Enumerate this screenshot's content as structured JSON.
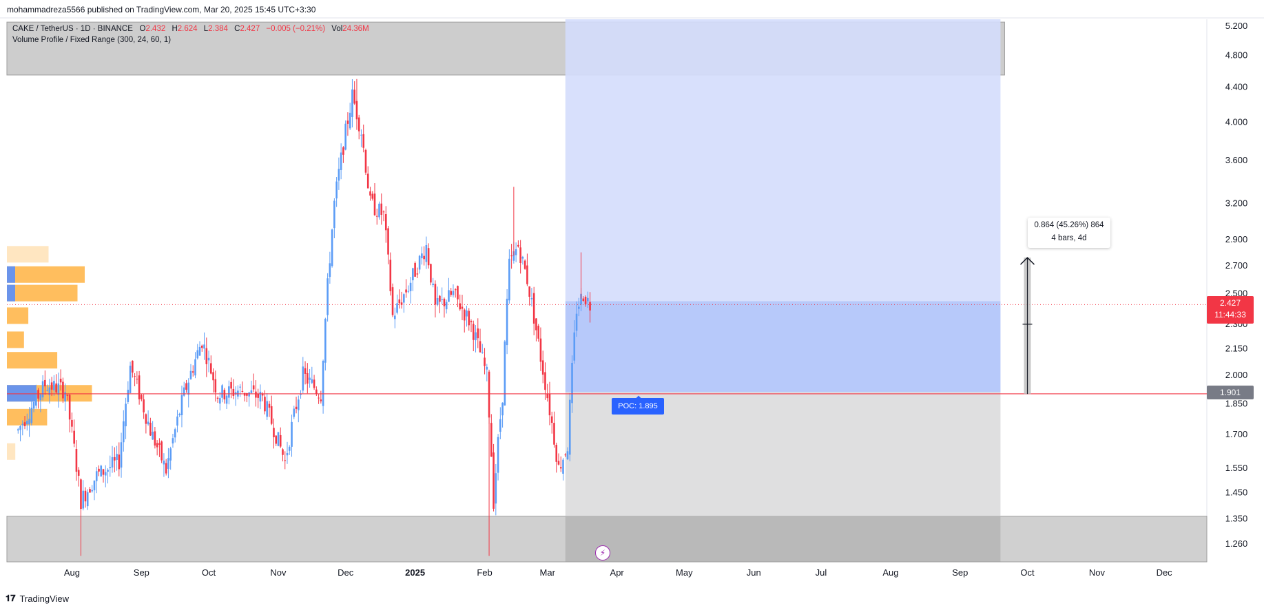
{
  "header": {
    "publisher": "mohammadreza5566 published on TradingView.com, Mar 20, 2025 15:45 UTC+3:30"
  },
  "legend": {
    "symbol": "CAKE / TetherUS · 1D · BINANCE",
    "open_label": "O",
    "open": "2.432",
    "high_label": "H",
    "high": "2.624",
    "low_label": "L",
    "low": "2.384",
    "close_label": "C",
    "close": "2.427",
    "change": "−0.005 (−0.21%)",
    "vol_label": "Vol",
    "vol": "24.36M",
    "indicator": "Volume Profile / Fixed Range (300, 24, 60, 1)"
  },
  "measure": {
    "line1": "0.864 (45.26%) 864",
    "line2": "4 bars, 4d"
  },
  "poc_label": "POC: 1.895",
  "price_tag": {
    "price": "2.427",
    "countdown": "11:44:33"
  },
  "hline_tag": "1.901",
  "footer": {
    "brand": "TradingView",
    "logo": "tradingview-logo-icon"
  },
  "colors": {
    "up": "#5b9cf6",
    "down": "#f23645",
    "zone_blue": "#d4ddfc",
    "zone_blue_dark": "#b3c6fa",
    "zone_gray": "#dcdcdd",
    "zone_gray_dark": "#c4c4c4",
    "vp_orange": "#ffb74d",
    "vp_blue": "#5b8ff9"
  },
  "chart_data": {
    "type": "candlestick",
    "y_scale": "log",
    "y_ticks": [
      "5.200",
      "4.800",
      "4.400",
      "4.000",
      "3.600",
      "3.200",
      "2.900",
      "2.700",
      "2.500",
      "2.300",
      "2.150",
      "2.000",
      "1.850",
      "1.700",
      "1.550",
      "1.450",
      "1.350",
      "1.260"
    ],
    "x_ticks": [
      "Aug",
      "Sep",
      "Oct",
      "Nov",
      "Dec",
      "2025",
      "Feb",
      "Mar",
      "Apr",
      "May",
      "Jun",
      "Jul",
      "Aug",
      "Sep",
      "Oct",
      "Nov",
      "Dec"
    ],
    "x_tick_dates": [
      "2024-08-01",
      "2024-09-01",
      "2024-10-01",
      "2024-11-01",
      "2024-12-01",
      "2025-01-01",
      "2025-02-01",
      "2025-03-01",
      "2025-04-01",
      "2025-05-01",
      "2025-06-01",
      "2025-07-01",
      "2025-08-01",
      "2025-09-01",
      "2025-10-01",
      "2025-11-01",
      "2025-12-01"
    ],
    "y_range": [
      1.2,
      5.3
    ],
    "last_price": 2.427,
    "horizontal_line": 1.901,
    "poc": 1.895,
    "price_path": [
      [
        "2024-07-08",
        1.72
      ],
      [
        "2024-07-20",
        1.95
      ],
      [
        "2024-07-29",
        1.92
      ],
      [
        "2024-08-05",
        1.42
      ],
      [
        "2024-08-12",
        1.52
      ],
      [
        "2024-08-22",
        1.58
      ],
      [
        "2024-08-27",
        2.05
      ],
      [
        "2024-09-05",
        1.72
      ],
      [
        "2024-09-12",
        1.54
      ],
      [
        "2024-09-20",
        1.9
      ],
      [
        "2024-09-28",
        2.2
      ],
      [
        "2024-10-05",
        1.9
      ],
      [
        "2024-10-15",
        1.92
      ],
      [
        "2024-10-25",
        1.88
      ],
      [
        "2024-11-04",
        1.58
      ],
      [
        "2024-11-12",
        2.0
      ],
      [
        "2024-11-20",
        1.9
      ],
      [
        "2024-11-26",
        3.2
      ],
      [
        "2024-12-04",
        4.3
      ],
      [
        "2024-12-08",
        3.9
      ],
      [
        "2024-12-12",
        3.2
      ],
      [
        "2024-12-18",
        3.1
      ],
      [
        "2024-12-22",
        2.35
      ],
      [
        "2024-12-29",
        2.55
      ],
      [
        "2025-01-06",
        2.85
      ],
      [
        "2025-01-10",
        2.4
      ],
      [
        "2025-01-18",
        2.5
      ],
      [
        "2025-01-26",
        2.3
      ],
      [
        "2025-02-02",
        2.0
      ],
      [
        "2025-02-05",
        1.42
      ],
      [
        "2025-02-09",
        1.9
      ],
      [
        "2025-02-12",
        2.7
      ],
      [
        "2025-02-16",
        2.85
      ],
      [
        "2025-02-20",
        2.6
      ],
      [
        "2025-02-26",
        2.1
      ],
      [
        "2025-03-02",
        1.82
      ],
      [
        "2025-03-06",
        1.55
      ],
      [
        "2025-03-10",
        1.65
      ],
      [
        "2025-03-14",
        2.4
      ],
      [
        "2025-03-17",
        2.5
      ],
      [
        "2025-03-20",
        2.427
      ]
    ],
    "highs": [
      [
        "2024-12-06",
        4.5
      ],
      [
        "2025-02-14",
        3.35
      ],
      [
        "2025-03-16",
        2.8
      ]
    ],
    "lows": [
      [
        "2024-08-05",
        1.22
      ],
      [
        "2025-02-03",
        1.22
      ]
    ],
    "volume_profile": {
      "bins": [
        {
          "price": 2.78,
          "vol": 0.25
        },
        {
          "price": 2.63,
          "vol": 0.5
        },
        {
          "price": 2.5,
          "vol": 0.45
        },
        {
          "price": 2.35,
          "vol": 0.11
        },
        {
          "price": 2.2,
          "vol": 0.08
        },
        {
          "price": 2.08,
          "vol": 0.31
        },
        {
          "price": 1.9,
          "vol": 0.55
        },
        {
          "price": 1.78,
          "vol": 0.24
        },
        {
          "price": 1.62,
          "vol": 0.02
        }
      ]
    },
    "zones": {
      "top_band": [
        4.55,
        5.2
      ],
      "bottom_band": [
        1.2,
        1.36
      ],
      "projection_start": "2025-03-09",
      "projection_end": "2025-09-19",
      "target_price": 4.55,
      "entry_price": 2.45,
      "stop_price": 1.91
    },
    "measure_arrow": {
      "date": "2025-10-01",
      "from": 1.9,
      "to": 2.76,
      "tick": 2.3
    }
  }
}
